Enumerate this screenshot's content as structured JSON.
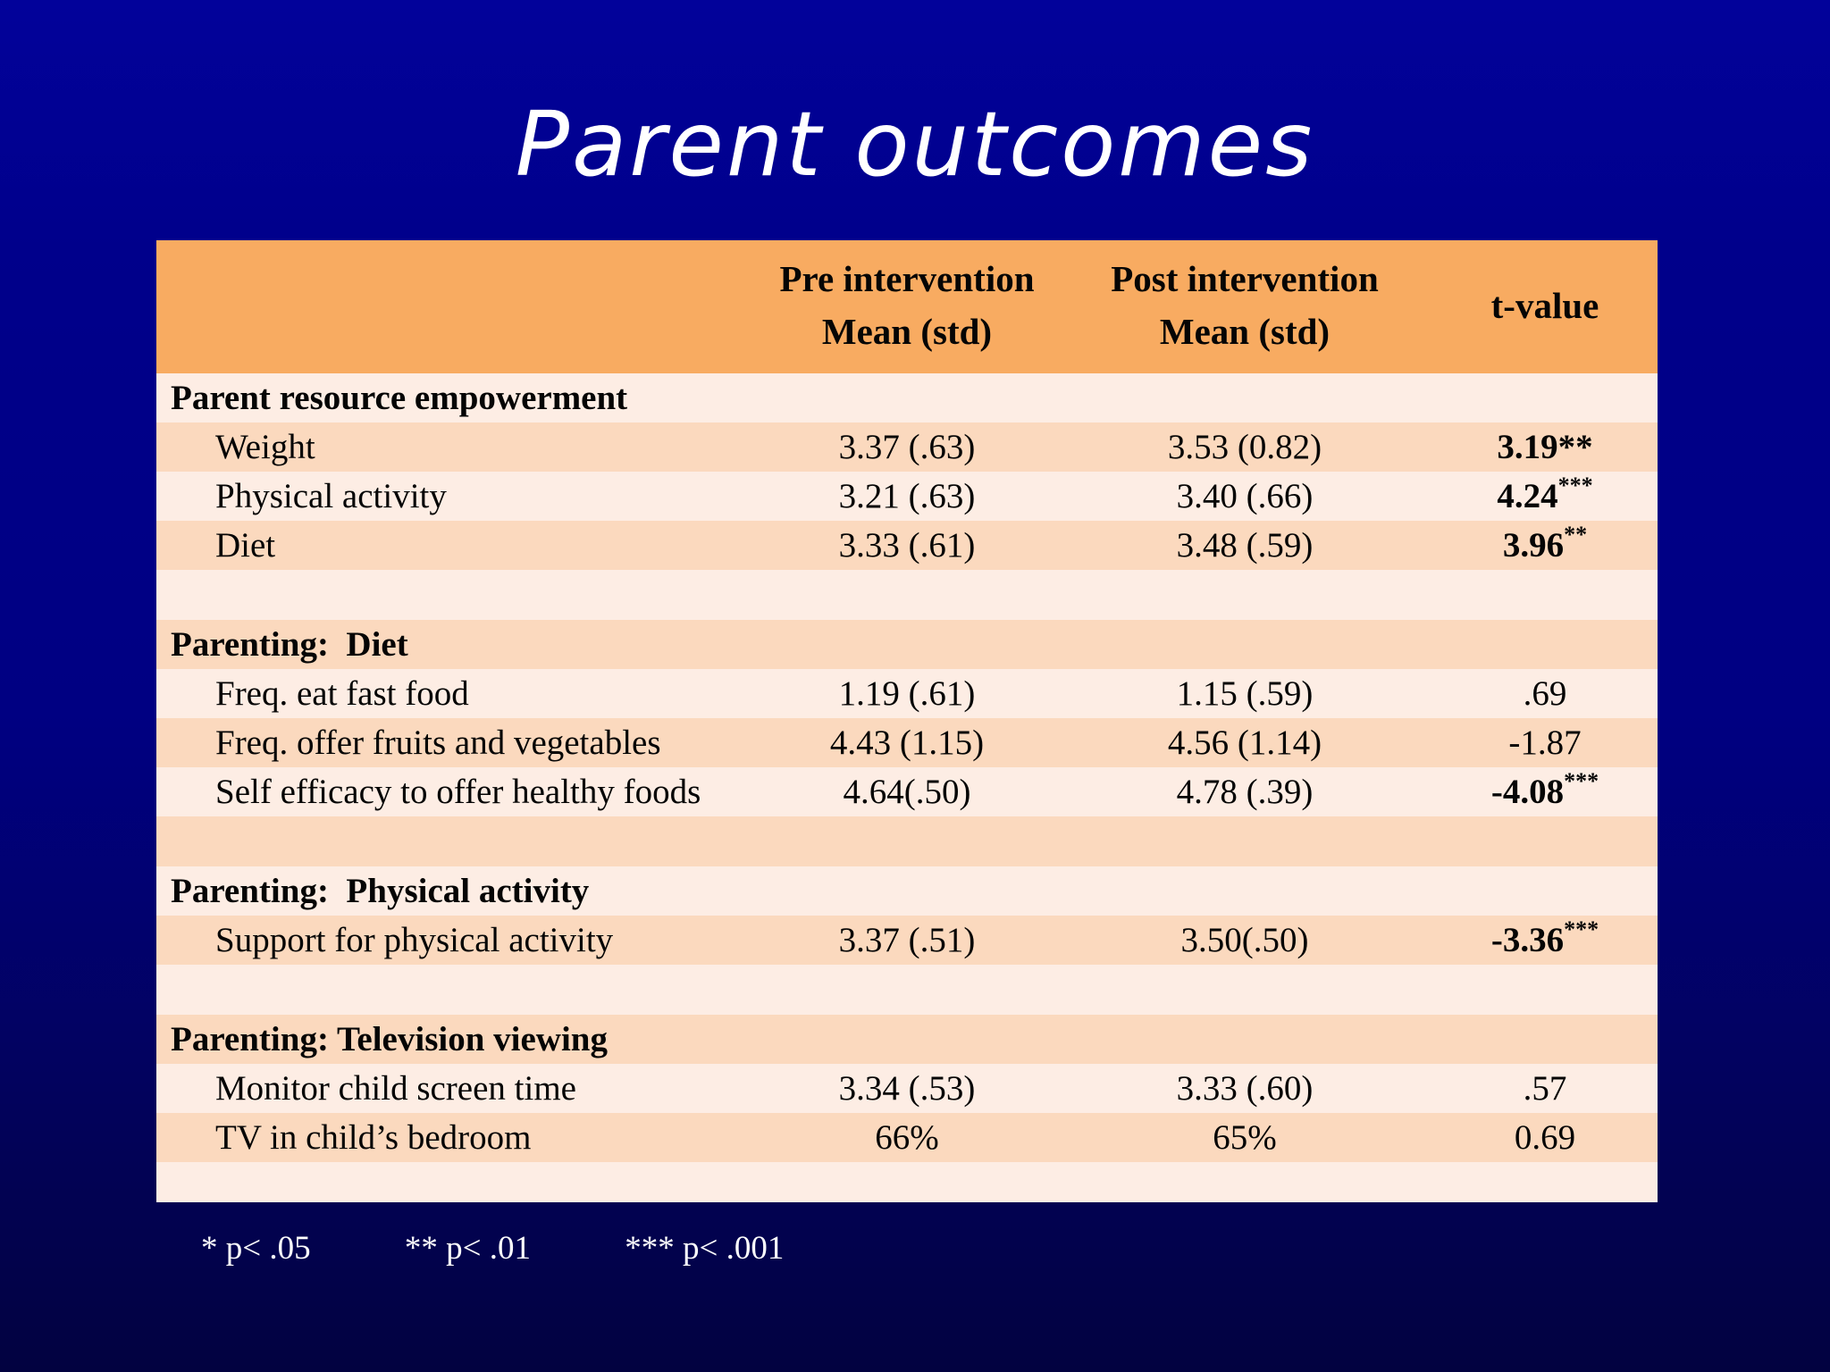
{
  "slide": {
    "title": "Parent outcomes"
  },
  "table": {
    "columns": {
      "pre_line1": "Pre intervention",
      "pre_line2": "Mean (std)",
      "post_line1": "Post intervention",
      "post_line2": "Mean (std)",
      "tvalue": "t-value"
    },
    "rows": [
      {
        "type": "section",
        "shade": "light",
        "label": "Parent resource empowerment"
      },
      {
        "type": "data",
        "shade": "dark",
        "label": "Weight",
        "pre": "3.37 (.63)",
        "post": "3.53 (0.82)",
        "t": "3.19",
        "stars": "**",
        "sig": true,
        "sup": false
      },
      {
        "type": "data",
        "shade": "light",
        "label": "Physical activity",
        "pre": "3.21 (.63)",
        "post": "3.40 (.66)",
        "t": "4.24",
        "stars": "***",
        "sig": true,
        "sup": true
      },
      {
        "type": "data",
        "shade": "dark",
        "label": "Diet",
        "pre": "3.33 (.61)",
        "post": "3.48 (.59)",
        "t": "3.96",
        "stars": "**",
        "sig": true,
        "sup": true
      },
      {
        "type": "spacer",
        "shade": "light"
      },
      {
        "type": "section",
        "shade": "dark",
        "label": "Parenting:  Diet"
      },
      {
        "type": "data",
        "shade": "light",
        "label": "Freq. eat fast food",
        "pre": "1.19 (.61)",
        "post": "1.15 (.59)",
        "t": ".69",
        "stars": "",
        "sig": false,
        "sup": false
      },
      {
        "type": "data",
        "shade": "dark",
        "label": "Freq. offer fruits and vegetables",
        "pre": "4.43 (1.15)",
        "post": "4.56 (1.14)",
        "t": "-1.87",
        "stars": "",
        "sig": false,
        "sup": false
      },
      {
        "type": "data",
        "shade": "light",
        "label": "Self efficacy to offer healthy foods",
        "pre": "4.64(.50)",
        "post": "4.78 (.39)",
        "t": "-4.08",
        "stars": "***",
        "sig": true,
        "sup": true
      },
      {
        "type": "spacer",
        "shade": "dark"
      },
      {
        "type": "section",
        "shade": "light",
        "label": "Parenting:  Physical activity"
      },
      {
        "type": "data",
        "shade": "dark",
        "label": "Support for physical activity",
        "pre": "3.37 (.51)",
        "post": "3.50(.50)",
        "t": "-3.36",
        "stars": "***",
        "sig": true,
        "sup": true
      },
      {
        "type": "spacer",
        "shade": "light"
      },
      {
        "type": "section",
        "shade": "dark",
        "label": "Parenting: Television viewing"
      },
      {
        "type": "data",
        "shade": "light",
        "label": "Monitor child screen time",
        "pre": "3.34 (.53)",
        "post": "3.33 (.60)",
        "t": ".57",
        "stars": "",
        "sig": false,
        "sup": false
      },
      {
        "type": "data",
        "shade": "dark",
        "label": "TV in child’s bedroom",
        "pre": "66%",
        "post": "65%",
        "t": "0.69",
        "stars": "",
        "sig": false,
        "sup": false
      },
      {
        "type": "spacer_thin",
        "shade": "light"
      }
    ]
  },
  "footnote": {
    "p05": "* p< .05",
    "p01": "** p< .01",
    "p001": "*** p< .001"
  },
  "colors": {
    "header_bg": "#f8ab61",
    "row_dark": "#fbd9be",
    "row_light": "#fdede4",
    "background_top": "#00008b",
    "background_bottom": "#020240",
    "title_text": "#ffffff",
    "table_text": "#050505"
  }
}
